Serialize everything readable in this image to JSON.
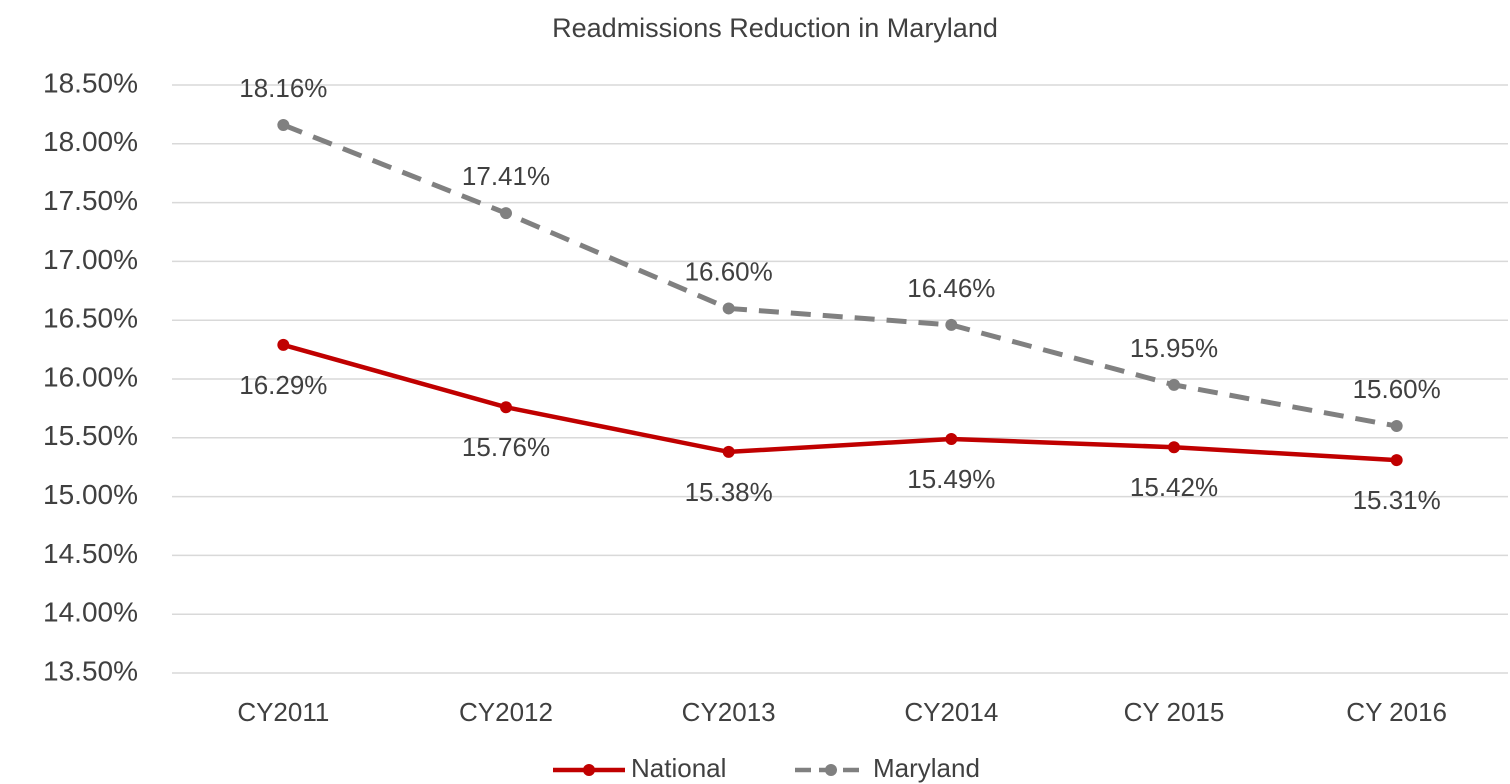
{
  "chart_data": {
    "type": "line",
    "title": "Readmissions Reduction in Maryland",
    "categories": [
      "CY2011",
      "CY2012",
      "CY2013",
      "CY2014",
      "CY 2015",
      "CY 2016"
    ],
    "series": [
      {
        "name": "National",
        "color": "#c00000",
        "dashed": false,
        "label_position": "below",
        "values": [
          16.29,
          15.76,
          15.38,
          15.49,
          15.42,
          15.31
        ],
        "value_labels": [
          "16.29%",
          "15.76%",
          "15.38%",
          "15.49%",
          "15.42%",
          "15.31%"
        ]
      },
      {
        "name": "Maryland",
        "color": "#808080",
        "dashed": true,
        "label_position": "above",
        "values": [
          18.16,
          17.41,
          16.6,
          16.46,
          15.95,
          15.6
        ],
        "value_labels": [
          "18.16%",
          "17.41%",
          "16.60%",
          "16.46%",
          "15.95%",
          "15.60%"
        ]
      }
    ],
    "ylim": [
      13.5,
      18.5
    ],
    "yticks": [
      {
        "value": 13.5,
        "label": "13.50%"
      },
      {
        "value": 14,
        "label": "14.00%"
      },
      {
        "value": 14.5,
        "label": "14.50%"
      },
      {
        "value": 15,
        "label": "15.00%"
      },
      {
        "value": 15.5,
        "label": "15.50%"
      },
      {
        "value": 16,
        "label": "16.00%"
      },
      {
        "value": 16.5,
        "label": "16.50%"
      },
      {
        "value": 17,
        "label": "17.00%"
      },
      {
        "value": 17.5,
        "label": "17.50%"
      },
      {
        "value": 18,
        "label": "18.00%"
      },
      {
        "value": 18.5,
        "label": "18.50%"
      }
    ],
    "grid": true,
    "legend": "bottom"
  }
}
